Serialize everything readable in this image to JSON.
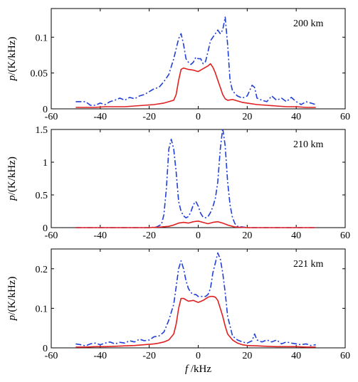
{
  "chart_data": [
    {
      "type": "line",
      "panel_label": "200 km",
      "ylabel": "p/(K/kHz)",
      "xlabel": "",
      "xlim": [
        -60,
        60
      ],
      "ylim": [
        0,
        0.14
      ],
      "xticks": [
        "-60",
        "-40",
        "-20",
        "0",
        "20",
        "40",
        "60"
      ],
      "yticks": [
        {
          "v": 0,
          "t": "0"
        },
        {
          "v": 0.05,
          "t": "0.05"
        },
        {
          "v": 0.1,
          "t": "0.1"
        }
      ],
      "grid": false,
      "series": [
        {
          "style": "dash-dot",
          "color": "#1f3fd8",
          "x": [
            -50,
            -48,
            -46,
            -44,
            -42,
            -40,
            -38,
            -36,
            -34,
            -32,
            -30,
            -28,
            -26,
            -24,
            -22,
            -20,
            -18,
            -16,
            -14,
            -12,
            -10,
            -8,
            -7,
            -6,
            -5,
            -4,
            -3,
            -2,
            -1,
            0,
            1,
            2,
            3,
            4,
            5,
            6,
            7,
            8,
            9,
            10,
            11,
            12,
            13,
            14,
            16,
            18,
            20,
            22,
            23,
            24,
            26,
            28,
            30,
            32,
            34,
            36,
            38,
            40,
            42,
            44,
            46,
            48
          ],
          "y": [
            0.01,
            0.01,
            0.01,
            0.005,
            0.005,
            0.008,
            0.006,
            0.01,
            0.012,
            0.015,
            0.012,
            0.016,
            0.014,
            0.018,
            0.02,
            0.024,
            0.028,
            0.03,
            0.038,
            0.048,
            0.07,
            0.098,
            0.105,
            0.09,
            0.07,
            0.065,
            0.062,
            0.065,
            0.072,
            0.07,
            0.07,
            0.063,
            0.066,
            0.08,
            0.095,
            0.1,
            0.105,
            0.11,
            0.105,
            0.11,
            0.128,
            0.09,
            0.04,
            0.025,
            0.018,
            0.015,
            0.018,
            0.033,
            0.03,
            0.015,
            0.012,
            0.01,
            0.018,
            0.012,
            0.015,
            0.01,
            0.016,
            0.01,
            0.006,
            0.01,
            0.008,
            0.006
          ]
        },
        {
          "style": "solid",
          "color": "#e02020",
          "x": [
            -50,
            -46,
            -42,
            -38,
            -34,
            -30,
            -26,
            -22,
            -18,
            -14,
            -12,
            -10,
            -9,
            -8,
            -7,
            -6,
            -4,
            -2,
            0,
            2,
            4,
            5,
            6,
            7,
            8,
            9,
            10,
            11,
            12,
            14,
            16,
            18,
            20,
            24,
            28,
            32,
            36,
            40,
            44,
            48
          ],
          "y": [
            0.002,
            0.002,
            0.002,
            0.003,
            0.003,
            0.003,
            0.004,
            0.005,
            0.006,
            0.008,
            0.01,
            0.012,
            0.02,
            0.04,
            0.055,
            0.057,
            0.055,
            0.054,
            0.052,
            0.056,
            0.06,
            0.063,
            0.058,
            0.05,
            0.04,
            0.03,
            0.02,
            0.014,
            0.012,
            0.013,
            0.011,
            0.009,
            0.008,
            0.006,
            0.005,
            0.004,
            0.003,
            0.003,
            0.002,
            0.002
          ]
        }
      ]
    },
    {
      "type": "line",
      "panel_label": "210 km",
      "ylabel": "p/(K/kHz)",
      "xlabel": "",
      "xlim": [
        -60,
        60
      ],
      "ylim": [
        0,
        1.5
      ],
      "xticks": [
        "-60",
        "-40",
        "-20",
        "0",
        "20",
        "40",
        "60"
      ],
      "yticks": [
        {
          "v": 0,
          "t": "0"
        },
        {
          "v": 0.5,
          "t": "0.5"
        },
        {
          "v": 1,
          "t": "1"
        },
        {
          "v": 1.5,
          "t": "1.5"
        }
      ],
      "grid": false,
      "series": [
        {
          "style": "dash-dot",
          "color": "#1f3fd8",
          "x": [
            -50,
            -40,
            -30,
            -20,
            -17,
            -15,
            -14,
            -13,
            -12,
            -11,
            -10,
            -9,
            -8,
            -7,
            -6,
            -5,
            -4,
            -3,
            -2,
            -1,
            0,
            1,
            2,
            3,
            4,
            5,
            6,
            7,
            8,
            9,
            10,
            11,
            12,
            13,
            14,
            15,
            16,
            18,
            20,
            30,
            40,
            48
          ],
          "y": [
            0.0,
            0.0,
            0.0,
            0.0,
            0.01,
            0.05,
            0.2,
            0.6,
            1.2,
            1.35,
            1.2,
            0.85,
            0.4,
            0.25,
            0.18,
            0.15,
            0.17,
            0.24,
            0.35,
            0.4,
            0.33,
            0.22,
            0.16,
            0.15,
            0.17,
            0.23,
            0.32,
            0.45,
            0.7,
            1.2,
            1.52,
            1.25,
            0.7,
            0.35,
            0.15,
            0.06,
            0.02,
            0.01,
            0.0,
            0.0,
            0.0,
            0.0
          ]
        },
        {
          "style": "solid",
          "color": "#e02020",
          "x": [
            -50,
            -40,
            -30,
            -20,
            -15,
            -12,
            -10,
            -8,
            -6,
            -4,
            -2,
            0,
            2,
            4,
            6,
            8,
            10,
            12,
            15,
            20,
            30,
            40,
            48
          ],
          "y": [
            0.0,
            0.0,
            0.0,
            0.0,
            0.01,
            0.02,
            0.04,
            0.07,
            0.08,
            0.07,
            0.09,
            0.1,
            0.08,
            0.06,
            0.08,
            0.09,
            0.07,
            0.04,
            0.01,
            0.0,
            0.0,
            0.0,
            0.0
          ]
        }
      ]
    },
    {
      "type": "line",
      "panel_label": "221 km",
      "ylabel": "p/(K/kHz)",
      "xlabel": "f /kHz",
      "xlim": [
        -60,
        60
      ],
      "ylim": [
        0,
        0.25
      ],
      "xticks": [
        "-60",
        "-40",
        "-20",
        "0",
        "20",
        "40",
        "60"
      ],
      "yticks": [
        {
          "v": 0,
          "t": "0"
        },
        {
          "v": 0.1,
          "t": "0.1"
        },
        {
          "v": 0.2,
          "t": "0.2"
        }
      ],
      "grid": false,
      "series": [
        {
          "style": "dash-dot",
          "color": "#1f3fd8",
          "x": [
            -50,
            -48,
            -46,
            -44,
            -42,
            -40,
            -38,
            -36,
            -34,
            -32,
            -30,
            -28,
            -26,
            -24,
            -22,
            -20,
            -18,
            -16,
            -14,
            -12,
            -10,
            -8,
            -7,
            -6,
            -5,
            -4,
            -3,
            -2,
            -1,
            0,
            1,
            2,
            3,
            4,
            5,
            6,
            7,
            8,
            9,
            10,
            11,
            12,
            14,
            16,
            18,
            20,
            22,
            23,
            24,
            26,
            28,
            30,
            32,
            34,
            36,
            38,
            40,
            42,
            44,
            46,
            48
          ],
          "y": [
            0.01,
            0.008,
            0.005,
            0.01,
            0.012,
            0.008,
            0.012,
            0.015,
            0.01,
            0.014,
            0.012,
            0.018,
            0.015,
            0.022,
            0.018,
            0.02,
            0.028,
            0.03,
            0.04,
            0.07,
            0.11,
            0.2,
            0.22,
            0.2,
            0.17,
            0.15,
            0.14,
            0.135,
            0.135,
            0.13,
            0.13,
            0.13,
            0.13,
            0.135,
            0.15,
            0.19,
            0.215,
            0.24,
            0.225,
            0.19,
            0.14,
            0.08,
            0.03,
            0.02,
            0.015,
            0.012,
            0.018,
            0.035,
            0.02,
            0.015,
            0.02,
            0.015,
            0.02,
            0.01,
            0.015,
            0.012,
            0.01,
            0.008,
            0.01,
            0.006,
            0.008
          ]
        },
        {
          "style": "solid",
          "color": "#e02020",
          "x": [
            -50,
            -46,
            -42,
            -38,
            -34,
            -30,
            -26,
            -22,
            -18,
            -16,
            -14,
            -12,
            -10,
            -9,
            -8,
            -7,
            -6,
            -4,
            -2,
            0,
            2,
            4,
            5,
            6,
            7,
            8,
            9,
            10,
            11,
            12,
            14,
            16,
            18,
            20,
            24,
            28,
            32,
            36,
            40,
            44,
            48
          ],
          "y": [
            0.002,
            0.002,
            0.003,
            0.003,
            0.004,
            0.005,
            0.006,
            0.008,
            0.01,
            0.012,
            0.015,
            0.02,
            0.035,
            0.06,
            0.1,
            0.125,
            0.125,
            0.118,
            0.12,
            0.115,
            0.12,
            0.128,
            0.13,
            0.13,
            0.128,
            0.12,
            0.1,
            0.08,
            0.055,
            0.035,
            0.02,
            0.012,
            0.008,
            0.006,
            0.005,
            0.004,
            0.003,
            0.003,
            0.003,
            0.002,
            0.002
          ]
        }
      ]
    }
  ]
}
